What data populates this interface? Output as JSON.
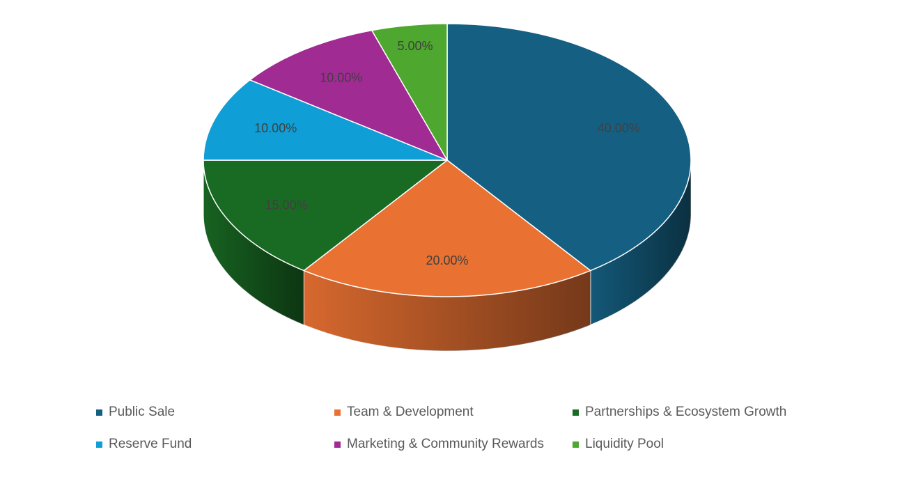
{
  "chart_data": {
    "type": "pie",
    "style": "3d",
    "slices": [
      {
        "name": "Public Sale",
        "value": 40,
        "label": "40.00%",
        "color": "#156082"
      },
      {
        "name": "Team & Development",
        "value": 20,
        "label": "20.00%",
        "color": "#E97132"
      },
      {
        "name": "Partnerships & Ecosystem Growth",
        "value": 15,
        "label": "15.00%",
        "color": "#196B24"
      },
      {
        "name": "Reserve Fund",
        "value": 10,
        "label": "10.00%",
        "color": "#0F9ED5"
      },
      {
        "name": "Marketing & Community Rewards",
        "value": 10,
        "label": "10.00%",
        "color": "#A02B93"
      },
      {
        "name": "Liquidity Pool",
        "value": 5,
        "label": "5.00%",
        "color": "#4EA72E"
      }
    ],
    "legend_position": "bottom",
    "label_color": "#404040"
  }
}
